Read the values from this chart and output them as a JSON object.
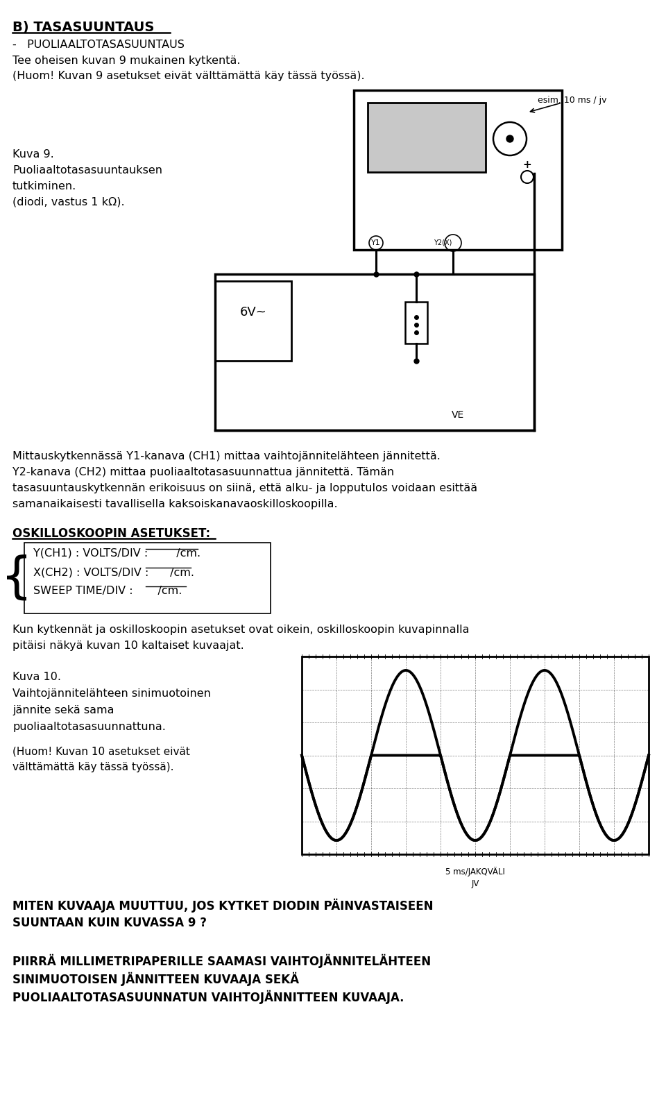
{
  "title_bold": "B) TASASUUNTAUS",
  "line1": "-   PUOLIAALTOTASASUUNTAUS",
  "line2": "Tee oheisen kuvan 9 mukainen kytkentä.",
  "line3": "(Huom! Kuvan 9 asetukset eivät välttämättä käy tässä työssä).",
  "kuva9_label_line1": "Kuva 9.",
  "kuva9_label_line2": "Puoliaaltotasasuuntauksen",
  "kuva9_label_line3": "tutkiminen.",
  "kuva9_label_line4": "(diodi, vastus 1 kΩ).",
  "esim_label": "esim. 10 ms / jv",
  "text_block_l1": "Mittauskytkennässä Y1-kanava (CH1) mittaa vaihtojännitelähteen jännitettä.",
  "text_block_l2": "Y2-kanava (CH2) mittaa puoliaaltotasasuunnattua jännitettä. Tämän",
  "text_block_l3": "tasasuuntauskytkennän erikoisuus on siinä, että alku- ja lopputulos voidaan esittää",
  "text_block_l4": "samanaikaisesti tavallisella kaksoiskanavaoskilloskoopilla.",
  "oskill_title": "OSKILLOSKOOPIN ASETUKSET:",
  "ch1_line": "Y(CH1) : VOLTS/DIV :        /cm.",
  "ch2_line": "X(CH2) : VOLTS/DIV :      /cm.",
  "sweep_line": "SWEEP TIME/DIV :       /cm.",
  "kun_text_l1": "Kun kytkennät ja oskilloskoopin asetukset ovat oikein, oskilloskoopin kuvapinnalla",
  "kun_text_l2": "pitäisi näkyä kuvan 10 kaltaiset kuvaajat.",
  "kuva10_label_line1": "Kuva 10.",
  "kuva10_label_line2": "Vaihtojännitelähteen sinimuotoinen",
  "kuva10_label_line3": "jännite sekä sama",
  "kuva10_label_line4": "puoliaaltotasasuunnattuna.",
  "kuva10_label_line5": "(Huom! Kuvan 10 asetukset eivät",
  "kuva10_label_line6": "välttämättä käy tässä työssä).",
  "sweep_label": "5 ms/JAKQVÄLI",
  "jv_label": "JV",
  "bottom1": "MITEN KUVAAJA MUUTTUU, JOS KYTKET DIODIN PÄINVASTAISEEN",
  "bottom2": "SUUNTAAN KUIN KUVASSA 9 ?",
  "bottom3": "PIIRRÄ MILLIMETRIPAPERILLE SAAMASI VAIHTOJÄNNITELÄHTEEN",
  "bottom4": "SINIMUOTOISEN JÄNNITTEEN KUVAAJA SEKÄ",
  "bottom5": "PUOLIAALTOTASASUUNNATUN VAIHTOJÄNNITTEEN KUVAAJA.",
  "bg_color": "#ffffff",
  "text_color": "#000000",
  "font_size_body": 11.5,
  "font_size_title": 14
}
